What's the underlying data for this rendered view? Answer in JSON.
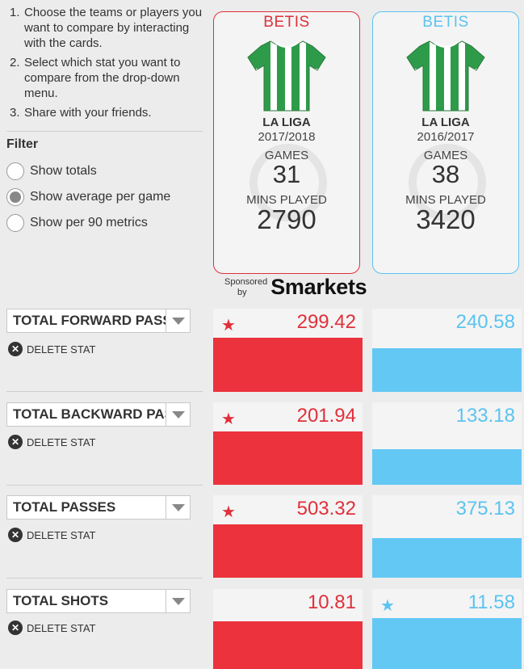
{
  "instructions": [
    {
      "num": "1.",
      "text": "Choose the teams or players you want to compare by interacting with the cards."
    },
    {
      "num": "2.",
      "text": "Select which stat you want to compare from the drop-down menu."
    },
    {
      "num": "3.",
      "text": "Share with your friends."
    }
  ],
  "filter": {
    "title": "Filter",
    "options": [
      "Show totals",
      "Show average per game",
      "Show per 90 metrics"
    ],
    "selected": 1
  },
  "cards": [
    {
      "team": "BETIS",
      "league": "LA LIGA",
      "season": "2017/2018",
      "games_label": "GAMES",
      "games": "31",
      "mins_label": "MINS PLAYED",
      "mins": "2790",
      "accent": "#e0303b"
    },
    {
      "team": "BETIS",
      "league": "LA LIGA",
      "season": "2016/2017",
      "games_label": "GAMES",
      "games": "38",
      "mins_label": "MINS PLAYED",
      "mins": "3420",
      "accent": "#5bc3f0"
    }
  ],
  "sponsor": {
    "line1": "Sponsored",
    "line2": "by",
    "brand": "Smarkets"
  },
  "delete_label": "DELETE STAT",
  "stats": [
    {
      "name": "TOTAL FORWARD PASSES",
      "left": "299.42",
      "right": "240.58",
      "left_value": 299.42,
      "right_value": 240.58,
      "winner": "left"
    },
    {
      "name": "TOTAL BACKWARD PASSES",
      "left": "201.94",
      "right": "133.18",
      "left_value": 201.94,
      "right_value": 133.18,
      "winner": "left"
    },
    {
      "name": "TOTAL PASSES",
      "left": "503.32",
      "right": "375.13",
      "left_value": 503.32,
      "right_value": 375.13,
      "winner": "left"
    },
    {
      "name": "TOTAL SHOTS",
      "left": "10.81",
      "right": "11.58",
      "left_value": 10.81,
      "right_value": 11.58,
      "winner": "right"
    }
  ],
  "colors": {
    "left": "#e0303b",
    "right": "#5bc3f0",
    "jersey_green": "#2e9b4a"
  }
}
